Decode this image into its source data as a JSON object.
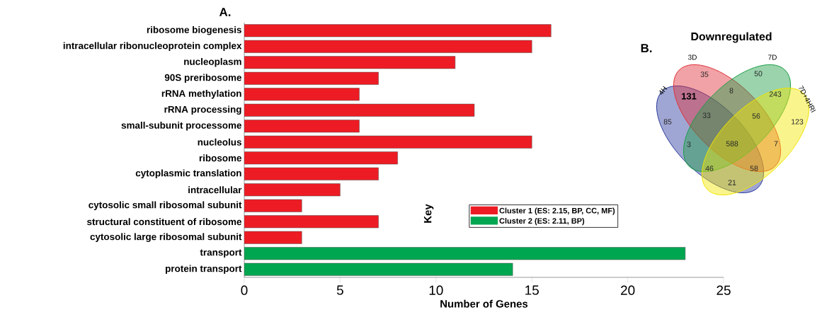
{
  "chart_data": [
    {
      "type": "bar",
      "orientation": "horizontal",
      "annotations": [
        "A."
      ],
      "xlabel": "Number of Genes",
      "legend_title": "Key",
      "legend": "bottom right",
      "categories": [
        "ribosome biogenesis",
        "intracellular ribonucleoprotein complex",
        "nucleoplasm",
        "90S preribosome",
        "rRNA methylation",
        "rRNA processing",
        "small-subunit processome",
        "nucleolus",
        "ribosome",
        "cytoplasmic translation",
        "intracellular",
        "cytosolic small ribosomal subunit",
        "structural constituent of ribosome",
        "cytosolic large ribosomal subunit",
        "transport",
        "protein transport"
      ],
      "series": [
        {
          "name": "Cluster 1 (ES: 2.15, BP, CC, MF)",
          "color": "#ed1c24",
          "values": [
            16,
            15,
            11,
            7,
            6,
            12,
            6,
            15,
            8,
            7,
            5,
            3,
            7,
            3,
            null,
            null
          ]
        },
        {
          "name": "Cluster 2 (ES: 2.11, BP)",
          "color": "#00a650",
          "values": [
            null,
            null,
            null,
            null,
            null,
            null,
            null,
            null,
            null,
            null,
            null,
            null,
            null,
            null,
            23,
            14
          ]
        }
      ],
      "xlim": [
        0,
        25
      ],
      "xticks": [
        0,
        5,
        10,
        15,
        20,
        25
      ]
    },
    {
      "type": "other",
      "title": "Downregulated",
      "categories": [
        "4H",
        "3D",
        "7D",
        "7D+4HRI"
      ],
      "colors": [
        "#2b3a9e",
        "#e0303a",
        "#1e9e48",
        "#f2e600"
      ],
      "annotations": [
        "B.",
        "35",
        "50",
        "131",
        "8",
        "243",
        "85",
        "33",
        "56",
        "123",
        "3",
        "588",
        "7",
        "46",
        "58",
        "21"
      ]
    }
  ]
}
